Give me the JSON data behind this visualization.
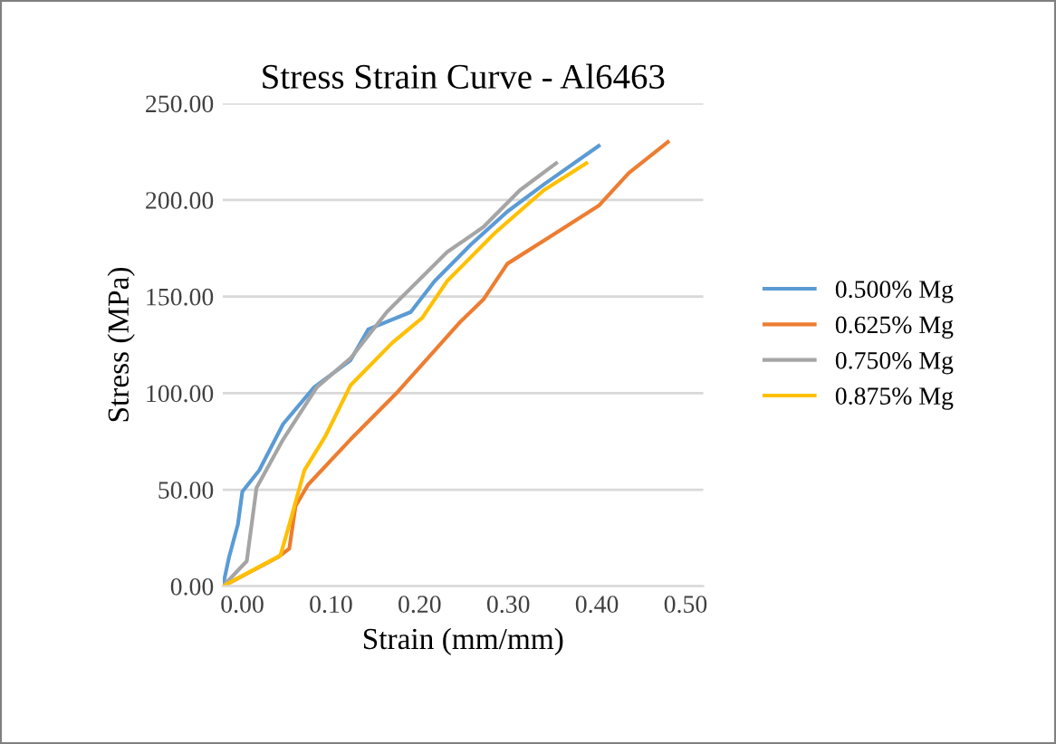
{
  "chart_data": {
    "type": "line",
    "title": "Stress Strain Curve - Al6463",
    "xlabel": "Strain (mm/mm)",
    "ylabel": "Stress (MPa)",
    "series": [
      {
        "name": "0.500% Mg",
        "color": "#5b9bd5",
        "x": [
          -0.022,
          -0.015,
          -0.005,
          0.0,
          0.019,
          0.046,
          0.081,
          0.122,
          0.142,
          0.19,
          0.217,
          0.258,
          0.299,
          0.34,
          0.402
        ],
        "values": [
          0,
          15,
          32,
          49,
          60,
          84,
          103,
          117,
          133,
          142,
          158,
          177,
          194,
          208,
          228
        ]
      },
      {
        "name": "0.625% Mg",
        "color": "#ed7d31",
        "x": [
          -0.022,
          0.04,
          0.053,
          0.06,
          0.074,
          0.122,
          0.176,
          0.244,
          0.272,
          0.299,
          0.354,
          0.402,
          0.436,
          0.48
        ],
        "values": [
          0,
          15,
          19.5,
          41.5,
          52.5,
          76,
          101,
          136,
          148.5,
          167,
          183,
          197,
          214,
          230
        ]
      },
      {
        "name": "0.750% Mg",
        "color": "#a5a5a5",
        "x": [
          -0.022,
          0.005,
          0.016,
          0.046,
          0.084,
          0.122,
          0.163,
          0.231,
          0.272,
          0.313,
          0.354
        ],
        "values": [
          0,
          13,
          51,
          76,
          103,
          118,
          142,
          173,
          186,
          205,
          219
        ]
      },
      {
        "name": "0.875% Mg",
        "color": "#ffc000",
        "x": [
          -0.022,
          0.043,
          0.053,
          0.07,
          0.094,
          0.122,
          0.169,
          0.203,
          0.231,
          0.285,
          0.34,
          0.388
        ],
        "values": [
          0,
          16,
          32,
          60,
          78,
          104,
          126,
          139,
          158,
          183,
          205,
          219
        ]
      }
    ],
    "xlim": [
      -0.022,
      0.52
    ],
    "xticks": [
      {
        "value": 0,
        "label": "0.00"
      },
      {
        "value": 0.1,
        "label": "0.10"
      },
      {
        "value": 0.2,
        "label": "0.20"
      },
      {
        "value": 0.3,
        "label": "0.30"
      },
      {
        "value": 0.4,
        "label": "0.40"
      },
      {
        "value": 0.5,
        "label": "0.50"
      }
    ],
    "ylim": [
      0,
      250
    ],
    "yticks": [
      {
        "value": 0,
        "label": "0.00"
      },
      {
        "value": 50,
        "label": "50.00"
      },
      {
        "value": 100,
        "label": "100.00"
      },
      {
        "value": 150,
        "label": "150.00"
      },
      {
        "value": 200,
        "label": "200.00"
      },
      {
        "value": 250,
        "label": "250.00"
      }
    ],
    "grid": "y",
    "legend": "right",
    "marker": "none",
    "line_style": "solid"
  }
}
